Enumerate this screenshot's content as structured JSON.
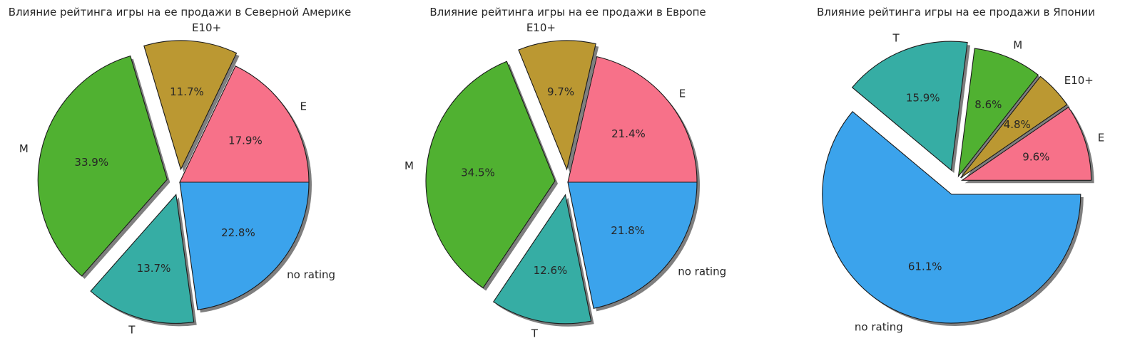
{
  "chart_data": [
    {
      "type": "pie",
      "title": "Влияние рейтинга игры на ее продажи в Северной Америке",
      "labels": [
        "E",
        "E10+",
        "M",
        "T",
        "no rating"
      ],
      "values": [
        17.9,
        11.7,
        33.9,
        13.7,
        22.8
      ],
      "value_labels": [
        "17.9%",
        "11.7%",
        "33.9%",
        "13.7%",
        "22.8%"
      ],
      "explode": [
        0,
        0.1,
        0.1,
        0.1,
        0
      ],
      "shadow": true
    },
    {
      "type": "pie",
      "title": "Влияние рейтинга игры на ее продажи в Европе",
      "labels": [
        "E",
        "E10+",
        "M",
        "T",
        "no rating"
      ],
      "values": [
        21.4,
        9.7,
        34.5,
        12.6,
        21.8
      ],
      "value_labels": [
        "21.4%",
        "9.7%",
        "34.5%",
        "12.6%",
        "21.8%"
      ],
      "explode": [
        0,
        0.1,
        0.1,
        0.1,
        0
      ],
      "shadow": true
    },
    {
      "type": "pie",
      "title": "Влияние рейтинга игры на ее продажи в Японии",
      "labels": [
        "E",
        "E10+",
        "M",
        "T",
        "no rating"
      ],
      "values": [
        9.6,
        4.8,
        8.6,
        15.9,
        61.1
      ],
      "value_labels": [
        "9.6%",
        "4.8%",
        "8.6%",
        "15.9%",
        "61.1%"
      ],
      "explode": [
        0.05,
        0.05,
        0.05,
        0.1,
        0.1
      ],
      "shadow": true
    }
  ],
  "colors": {
    "E": "#f77189",
    "E10+": "#bb9832",
    "M": "#50b131",
    "T": "#36ada4",
    "no rating": "#3ba3ec"
  }
}
